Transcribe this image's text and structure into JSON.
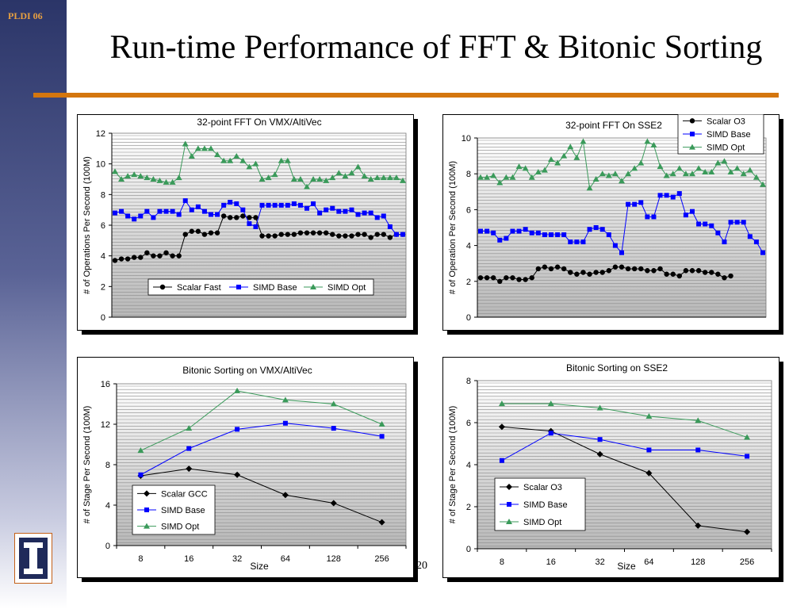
{
  "header": {
    "conference": "PLDI 06",
    "title": "Run-time Performance of FFT & Bitonic Sorting",
    "slide_number": "20"
  },
  "colors": {
    "accent_rule": "#d4760e",
    "series_black": "#000000",
    "series_blue": "#0000ff",
    "series_green": "#3a9a5a"
  },
  "chart_data": [
    {
      "type": "line",
      "title": "32-point FFT On VMX/AltiVec",
      "xlabel": "",
      "ylabel": "# of Operations Per Second (100M)",
      "ylim": [
        0,
        12
      ],
      "yticks": [
        0,
        2,
        4,
        6,
        8,
        10,
        12
      ],
      "legend_position": "bottom-center",
      "series": [
        {
          "name": "Scalar Fast",
          "marker": "circle",
          "color": "#000000",
          "values": [
            3.7,
            3.8,
            3.8,
            3.9,
            3.9,
            4.2,
            4.0,
            4.0,
            4.2,
            4.0,
            4.0,
            5.4,
            5.6,
            5.6,
            5.4,
            5.5,
            5.5,
            6.6,
            6.5,
            6.5,
            6.6,
            6.5,
            6.5,
            5.3,
            5.3,
            5.3,
            5.4,
            5.4,
            5.4,
            5.5,
            5.5,
            5.5,
            5.5,
            5.5,
            5.4,
            5.3,
            5.3,
            5.3,
            5.4,
            5.4,
            5.2,
            5.4,
            5.4,
            5.2,
            5.4,
            5.4
          ]
        },
        {
          "name": "SIMD Base",
          "marker": "square",
          "color": "#0000ff",
          "values": [
            6.8,
            6.9,
            6.6,
            6.4,
            6.6,
            6.9,
            6.5,
            6.9,
            6.9,
            6.9,
            6.7,
            7.6,
            7.0,
            7.2,
            6.9,
            6.7,
            6.7,
            7.3,
            7.5,
            7.4,
            7.0,
            6.1,
            5.9,
            7.3,
            7.3,
            7.3,
            7.3,
            7.3,
            7.4,
            7.3,
            7.1,
            7.4,
            6.8,
            7.0,
            7.1,
            6.9,
            6.9,
            7.0,
            6.7,
            6.8,
            6.8,
            6.5,
            6.6,
            5.9,
            5.4,
            5.4
          ]
        },
        {
          "name": "SIMD Opt",
          "marker": "triangle",
          "color": "#3a9a5a",
          "values": [
            9.5,
            9.0,
            9.2,
            9.3,
            9.2,
            9.1,
            9.0,
            8.9,
            8.8,
            8.8,
            9.1,
            11.3,
            10.5,
            11.0,
            11.0,
            11.0,
            10.6,
            10.2,
            10.2,
            10.5,
            10.2,
            9.8,
            10.0,
            9.0,
            9.1,
            9.3,
            10.2,
            10.2,
            9.0,
            9.0,
            8.5,
            9.0,
            9.0,
            8.9,
            9.1,
            9.4,
            9.2,
            9.4,
            9.8,
            9.2,
            9.0,
            9.1,
            9.1,
            9.1,
            9.1,
            8.9
          ]
        }
      ]
    },
    {
      "type": "line",
      "title": "32-point FFT On SSE2",
      "xlabel": "",
      "ylabel": "# of Operation Per Second (100M)",
      "ylim": [
        0,
        10
      ],
      "yticks": [
        0,
        2,
        4,
        6,
        8,
        10
      ],
      "legend_position": "top-right",
      "series": [
        {
          "name": "Scalar O3",
          "marker": "circle",
          "color": "#000000",
          "values": [
            2.2,
            2.2,
            2.2,
            2.0,
            2.2,
            2.2,
            2.1,
            2.1,
            2.2,
            2.7,
            2.8,
            2.7,
            2.8,
            2.7,
            2.5,
            2.4,
            2.5,
            2.4,
            2.5,
            2.5,
            2.6,
            2.8,
            2.8,
            2.7,
            2.7,
            2.7,
            2.6,
            2.6,
            2.7,
            2.4,
            2.4,
            2.3,
            2.6,
            2.6,
            2.6,
            2.5,
            2.5,
            2.4,
            2.2,
            2.3
          ]
        },
        {
          "name": "SIMD Base",
          "marker": "square",
          "color": "#0000ff",
          "values": [
            4.8,
            4.8,
            4.7,
            4.3,
            4.4,
            4.8,
            4.8,
            4.9,
            4.7,
            4.7,
            4.6,
            4.6,
            4.6,
            4.6,
            4.2,
            4.2,
            4.2,
            4.9,
            5.0,
            4.9,
            4.6,
            4.0,
            3.6,
            6.3,
            6.3,
            6.4,
            5.6,
            5.6,
            6.8,
            6.8,
            6.7,
            6.9,
            5.7,
            5.9,
            5.2,
            5.2,
            5.1,
            4.7,
            4.2,
            5.3,
            5.3,
            5.3,
            4.5,
            4.2,
            3.6
          ]
        },
        {
          "name": "SIMD Opt",
          "marker": "triangle",
          "color": "#3a9a5a",
          "values": [
            7.8,
            7.8,
            7.9,
            7.5,
            7.8,
            7.8,
            8.4,
            8.3,
            7.8,
            8.1,
            8.2,
            8.8,
            8.6,
            9.0,
            9.5,
            8.9,
            9.8,
            7.2,
            7.7,
            8.0,
            7.9,
            8.0,
            7.6,
            8.0,
            8.3,
            8.6,
            9.8,
            9.6,
            8.4,
            7.9,
            8.0,
            8.3,
            8.0,
            8.0,
            8.3,
            8.1,
            8.1,
            8.6,
            8.7,
            8.1,
            8.3,
            8.0,
            8.2,
            7.8,
            7.4
          ]
        }
      ]
    },
    {
      "type": "line",
      "title": "Bitonic Sorting on VMX/AltiVec",
      "xlabel": "Size",
      "ylabel": "# of Stage Per Second (100M)",
      "ylim": [
        0,
        16
      ],
      "yticks": [
        0,
        4,
        8,
        12,
        16
      ],
      "categories": [
        "8",
        "16",
        "32",
        "64",
        "128",
        "256"
      ],
      "legend_position": "bottom-left",
      "series": [
        {
          "name": "Scalar GCC",
          "marker": "diamond",
          "color": "#000000",
          "values": [
            6.9,
            7.6,
            7.0,
            5.0,
            4.2,
            2.3
          ]
        },
        {
          "name": "SIMD Base",
          "marker": "square",
          "color": "#0000ff",
          "values": [
            7.0,
            9.6,
            11.5,
            12.1,
            11.6,
            10.8
          ]
        },
        {
          "name": "SIMD Opt",
          "marker": "triangle",
          "color": "#3a9a5a",
          "values": [
            9.4,
            11.6,
            15.3,
            14.4,
            14.0,
            12.0
          ]
        }
      ]
    },
    {
      "type": "line",
      "title": "Bitonic Sorting on SSE2",
      "xlabel": "Size",
      "ylabel": "# of Stage Per Second (100M)",
      "ylim": [
        0,
        8
      ],
      "yticks": [
        0,
        2,
        4,
        6,
        8
      ],
      "categories": [
        "8",
        "16",
        "32",
        "64",
        "128",
        "256"
      ],
      "legend_position": "bottom-left",
      "series": [
        {
          "name": "Scalar O3",
          "marker": "diamond",
          "color": "#000000",
          "values": [
            5.8,
            5.6,
            4.5,
            3.6,
            1.1,
            0.8
          ]
        },
        {
          "name": "SIMD Base",
          "marker": "square",
          "color": "#0000ff",
          "values": [
            4.2,
            5.5,
            5.2,
            4.7,
            4.7,
            4.4
          ]
        },
        {
          "name": "SIMD Opt",
          "marker": "triangle",
          "color": "#3a9a5a",
          "values": [
            6.9,
            6.9,
            6.7,
            6.3,
            6.1,
            5.3
          ]
        }
      ]
    }
  ]
}
